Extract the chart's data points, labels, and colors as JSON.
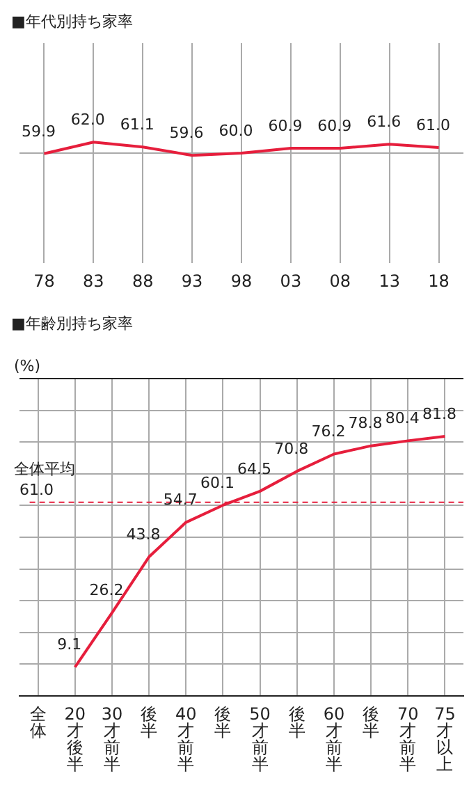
{
  "chart_data": [
    {
      "type": "line",
      "title": "■年代別持ち家率",
      "categories": [
        "78",
        "83",
        "88",
        "93",
        "98",
        "03",
        "08",
        "13",
        "18"
      ],
      "values": [
        59.9,
        62.0,
        61.1,
        59.6,
        60.0,
        60.9,
        60.9,
        61.6,
        61.0
      ],
      "value_labels": [
        "59.9",
        "62.0",
        "61.1",
        "59.6",
        "60.0",
        "60.9",
        "60.9",
        "61.6",
        "61.0"
      ],
      "color": "#e61e3c",
      "ylim": [
        40,
        80
      ],
      "grid": "x",
      "tick_labels": "x",
      "marker": "none",
      "line_style": "solid",
      "ref_lines": [
        {
          "axis": "y",
          "value": 60,
          "color": "#aaaaaa",
          "line_style": "solid"
        }
      ]
    },
    {
      "type": "line",
      "title": "■年齢別持ち家率",
      "ylabel": "(%)",
      "categories": [
        "全体",
        "20才後半",
        "30才前半",
        "後半",
        "40才前半",
        "後半",
        "50才前半",
        "後半",
        "60才前半",
        "後半",
        "70才前半",
        "75才以上"
      ],
      "values": [
        null,
        9.1,
        26.2,
        43.8,
        54.7,
        60.1,
        64.5,
        70.8,
        76.2,
        78.8,
        80.4,
        81.8
      ],
      "value_labels": [
        null,
        "9.1",
        "26.2",
        "43.8",
        "54.7",
        "60.1",
        "64.5",
        "70.8",
        "76.2",
        "78.8",
        "80.4",
        "81.8"
      ],
      "color": "#e61e3c",
      "ylim": [
        0,
        100
      ],
      "yticks": [
        {
          "value": 0,
          "label": null
        },
        {
          "value": 10,
          "label": null
        },
        {
          "value": 20,
          "label": null
        },
        {
          "value": 30,
          "label": null
        },
        {
          "value": 40,
          "label": null
        },
        {
          "value": 50,
          "label": null
        },
        {
          "value": 60,
          "label": null
        },
        {
          "value": 70,
          "label": null
        },
        {
          "value": 80,
          "label": null
        },
        {
          "value": 90,
          "label": null
        },
        {
          "value": 100,
          "label": null
        }
      ],
      "grid": true,
      "tick_labels": "x",
      "marker": "none",
      "line_style": "solid",
      "ref_lines": [
        {
          "axis": "y",
          "value": 61.0,
          "label": "全体平均 61.0",
          "color": "#e61e3c",
          "line_style": "dashed"
        }
      ]
    }
  ]
}
